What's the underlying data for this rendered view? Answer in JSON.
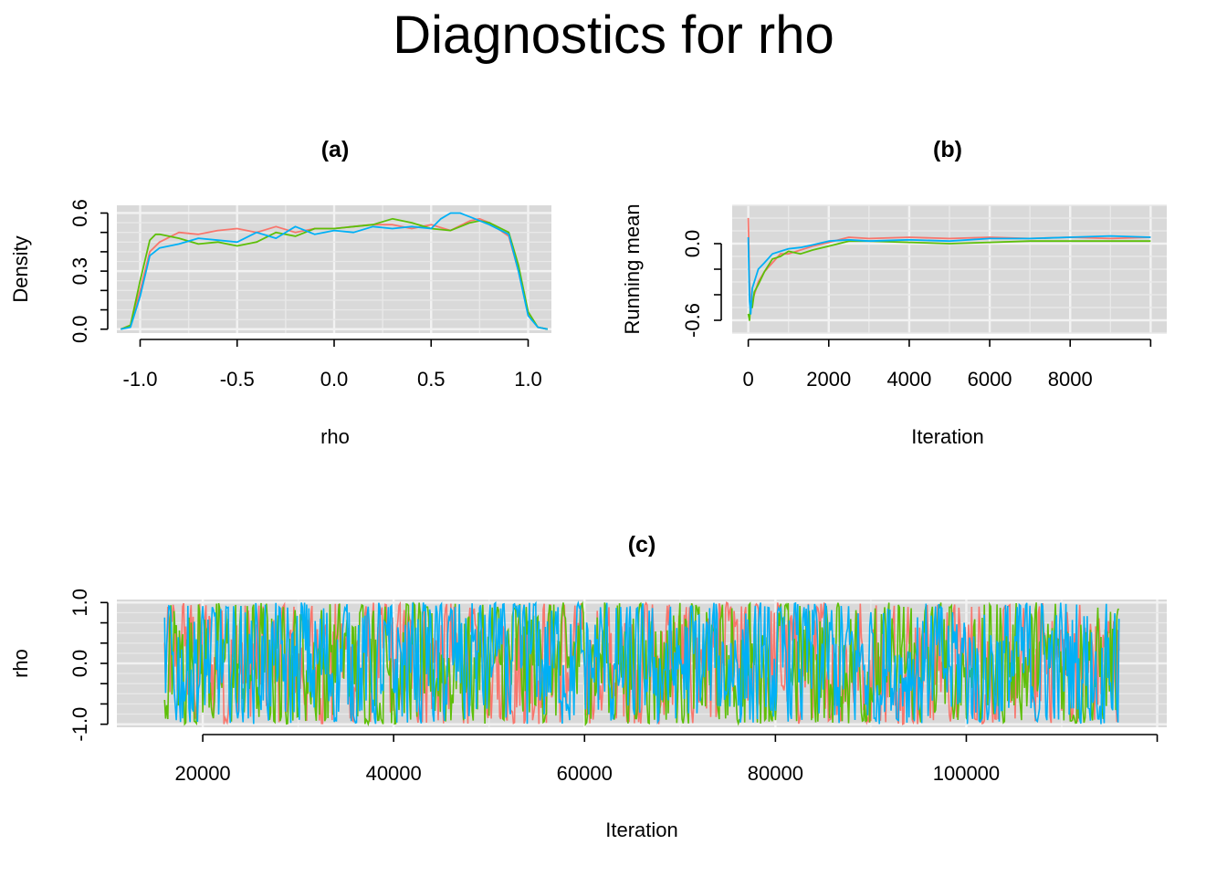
{
  "title": "Diagnostics for rho",
  "colors": {
    "chain1": "#f8766d",
    "chain2": "#5dbf08",
    "chain3": "#00b0f6",
    "panel_bg": "#d9d9d9",
    "grid": "#f2f2f2"
  },
  "chart_data": [
    {
      "id": "a",
      "type": "line",
      "title": "(a)",
      "xlabel": "rho",
      "ylabel": "Density",
      "xlim": [
        -1.12,
        1.12
      ],
      "ylim": [
        -0.02,
        0.64
      ],
      "xticks": [
        "-1.0",
        "-0.5",
        "0.0",
        "0.5",
        "1.0"
      ],
      "yticks": [
        "0.0",
        "0.3",
        "0.6"
      ],
      "grid": true,
      "series": [
        {
          "color": "#f8766d",
          "x": [
            -1.1,
            -1.05,
            -1.0,
            -0.95,
            -0.9,
            -0.8,
            -0.7,
            -0.6,
            -0.5,
            -0.4,
            -0.3,
            -0.2,
            -0.1,
            0.0,
            0.1,
            0.2,
            0.3,
            0.4,
            0.5,
            0.6,
            0.7,
            0.75,
            0.8,
            0.9,
            0.95,
            1.0,
            1.05,
            1.1
          ],
          "y": [
            0.0,
            0.02,
            0.2,
            0.4,
            0.45,
            0.5,
            0.49,
            0.51,
            0.52,
            0.5,
            0.53,
            0.5,
            0.52,
            0.52,
            0.53,
            0.54,
            0.54,
            0.52,
            0.54,
            0.51,
            0.56,
            0.57,
            0.55,
            0.48,
            0.3,
            0.08,
            0.01,
            0.0
          ]
        },
        {
          "color": "#5dbf08",
          "x": [
            -1.1,
            -1.05,
            -1.0,
            -0.95,
            -0.92,
            -0.9,
            -0.8,
            -0.7,
            -0.6,
            -0.5,
            -0.4,
            -0.3,
            -0.2,
            -0.1,
            0.0,
            0.1,
            0.2,
            0.3,
            0.4,
            0.5,
            0.6,
            0.7,
            0.75,
            0.8,
            0.9,
            0.95,
            1.0,
            1.05,
            1.1
          ],
          "y": [
            0.0,
            0.02,
            0.25,
            0.46,
            0.49,
            0.49,
            0.47,
            0.44,
            0.45,
            0.43,
            0.45,
            0.5,
            0.48,
            0.52,
            0.52,
            0.53,
            0.54,
            0.57,
            0.55,
            0.52,
            0.51,
            0.55,
            0.56,
            0.55,
            0.5,
            0.33,
            0.09,
            0.01,
            0.0
          ]
        },
        {
          "color": "#00b0f6",
          "x": [
            -1.1,
            -1.05,
            -1.0,
            -0.95,
            -0.9,
            -0.8,
            -0.7,
            -0.6,
            -0.5,
            -0.4,
            -0.3,
            -0.2,
            -0.1,
            0.0,
            0.1,
            0.2,
            0.3,
            0.4,
            0.5,
            0.55,
            0.6,
            0.65,
            0.7,
            0.8,
            0.9,
            0.95,
            1.0,
            1.05,
            1.1
          ],
          "y": [
            0.0,
            0.01,
            0.17,
            0.38,
            0.42,
            0.44,
            0.47,
            0.46,
            0.45,
            0.5,
            0.47,
            0.53,
            0.49,
            0.51,
            0.5,
            0.53,
            0.52,
            0.53,
            0.52,
            0.57,
            0.6,
            0.6,
            0.58,
            0.54,
            0.49,
            0.3,
            0.07,
            0.01,
            0.0
          ]
        }
      ]
    },
    {
      "id": "b",
      "type": "line",
      "title": "(b)",
      "xlabel": "Iteration",
      "ylabel": "Running mean",
      "xlim": [
        -400,
        10400
      ],
      "ylim": [
        -0.7,
        0.3
      ],
      "xticks": [
        "0",
        "2000",
        "4000",
        "6000",
        "8000"
      ],
      "yticks": [
        "-0.6",
        "0.0"
      ],
      "grid": true,
      "series": [
        {
          "color": "#f8766d",
          "x": [
            0,
            30,
            60,
            100,
            150,
            250,
            400,
            600,
            800,
            1000,
            1300,
            1600,
            2000,
            2500,
            3000,
            4000,
            5000,
            6000,
            7000,
            8000,
            9000,
            10000
          ],
          "y": [
            0.2,
            -0.3,
            -0.5,
            -0.45,
            -0.4,
            -0.3,
            -0.22,
            -0.15,
            -0.08,
            -0.08,
            -0.05,
            -0.02,
            0.01,
            0.05,
            0.04,
            0.05,
            0.04,
            0.05,
            0.04,
            0.05,
            0.04,
            0.05
          ]
        },
        {
          "color": "#5dbf08",
          "x": [
            0,
            30,
            60,
            100,
            150,
            250,
            400,
            600,
            800,
            1000,
            1300,
            1600,
            2000,
            2500,
            3000,
            4000,
            5000,
            6000,
            7000,
            8000,
            9000,
            10000
          ],
          "y": [
            -0.55,
            -0.6,
            -0.45,
            -0.5,
            -0.38,
            -0.32,
            -0.22,
            -0.12,
            -0.1,
            -0.06,
            -0.08,
            -0.05,
            -0.02,
            0.02,
            0.02,
            0.01,
            0.0,
            0.01,
            0.02,
            0.02,
            0.02,
            0.02
          ]
        },
        {
          "color": "#00b0f6",
          "x": [
            0,
            30,
            60,
            100,
            150,
            250,
            400,
            600,
            800,
            1000,
            1300,
            1600,
            2000,
            2500,
            3000,
            4000,
            5000,
            6000,
            7000,
            8000,
            9000,
            10000
          ],
          "y": [
            0.05,
            -0.45,
            -0.55,
            -0.35,
            -0.3,
            -0.2,
            -0.15,
            -0.08,
            -0.06,
            -0.04,
            -0.03,
            -0.01,
            0.02,
            0.03,
            0.02,
            0.03,
            0.02,
            0.04,
            0.04,
            0.05,
            0.06,
            0.05
          ]
        }
      ]
    },
    {
      "id": "c",
      "type": "line",
      "title": "(c)",
      "xlabel": "Iteration",
      "ylabel": "rho",
      "xlim": [
        11000,
        121000
      ],
      "ylim": [
        -1.05,
        1.05
      ],
      "xticks": [
        "20000",
        "40000",
        "60000",
        "80000",
        "100000"
      ],
      "yticks": [
        "-1.0",
        "0.0",
        "1.0"
      ],
      "x_range": [
        16000,
        116000
      ],
      "y_range": [
        -1.0,
        1.0
      ],
      "grid": true,
      "series": [
        {
          "color": "#f8766d"
        },
        {
          "color": "#5dbf08"
        },
        {
          "color": "#00b0f6"
        }
      ]
    }
  ]
}
